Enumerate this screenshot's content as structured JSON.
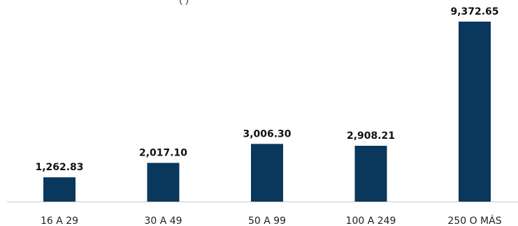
{
  "chart_data": {
    "type": "bar",
    "title_visible_fragment": "(                    )",
    "categories": [
      "16 A 29",
      "30 A 49",
      "50 A 99",
      "100 A 249",
      "250 O MÁS"
    ],
    "values": [
      1262.83,
      2017.1,
      3006.3,
      2908.21,
      9372.65
    ],
    "data_labels": [
      "1,262.83",
      "2,017.10",
      "3,006.30",
      "2,908.21",
      "9,372.65"
    ],
    "xlabel": "",
    "ylabel": "",
    "ylim": [
      0,
      10500
    ],
    "grid": false,
    "legend": "none",
    "colors": {
      "bar": "#0a375c",
      "axis": "#c8c8c8"
    }
  }
}
